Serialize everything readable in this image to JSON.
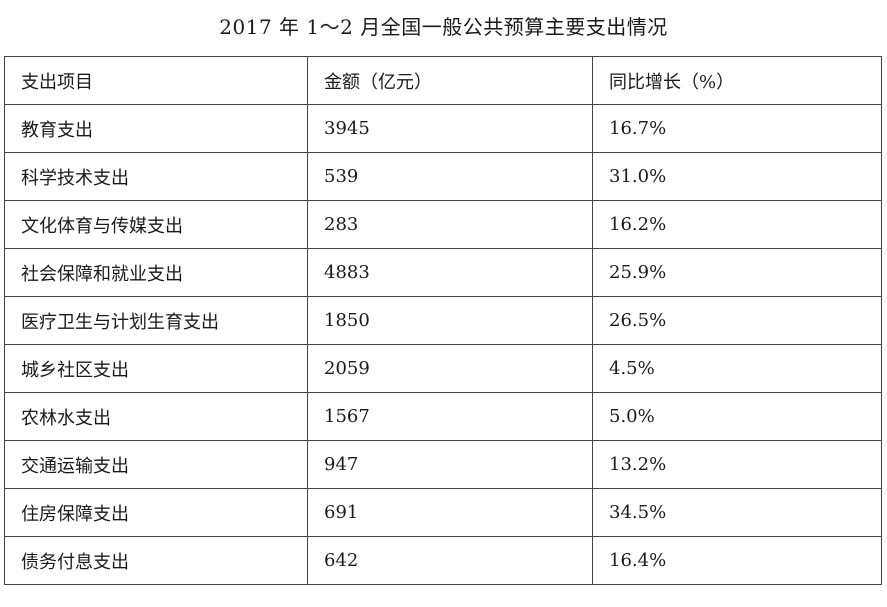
{
  "title": "2017 年 1～2 月全国一般公共预算主要支出情况",
  "table": {
    "headers": [
      "支出项目",
      "金额（亿元）",
      "同比增长（%）"
    ],
    "rows": [
      [
        "教育支出",
        "3945",
        "16.7%"
      ],
      [
        "科学技术支出",
        "539",
        "31.0%"
      ],
      [
        "文化体育与传媒支出",
        "283",
        "16.2%"
      ],
      [
        "社会保障和就业支出",
        "4883",
        "25.9%"
      ],
      [
        "医疗卫生与计划生育支出",
        "1850",
        "26.5%"
      ],
      [
        "城乡社区支出",
        "2059",
        "4.5%"
      ],
      [
        "农林水支出",
        "1567",
        "5.0%"
      ],
      [
        "交通运输支出",
        "947",
        "13.2%"
      ],
      [
        "住房保障支出",
        "691",
        "34.5%"
      ],
      [
        "债务付息支出",
        "642",
        "16.4%"
      ]
    ]
  }
}
